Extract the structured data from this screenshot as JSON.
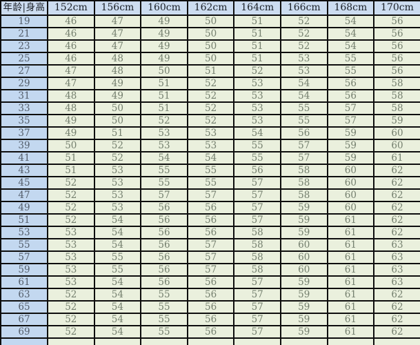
{
  "chart_data": {
    "type": "table",
    "title": "",
    "corner_header": "年龄|身高",
    "corner_header_meaning": "age | height",
    "column_headers": [
      "152cm",
      "156cm",
      "160cm",
      "162cm",
      "164cm",
      "166cm",
      "168cm",
      "170cm"
    ],
    "rows": [
      {
        "age": "19",
        "values": [
          46,
          47,
          49,
          50,
          51,
          52,
          54,
          56
        ]
      },
      {
        "age": "21",
        "values": [
          46,
          47,
          49,
          50,
          51,
          52,
          54,
          56
        ]
      },
      {
        "age": "23",
        "values": [
          46,
          47,
          49,
          50,
          51,
          52,
          54,
          56
        ]
      },
      {
        "age": "25",
        "values": [
          46,
          48,
          49,
          50,
          51,
          53,
          55,
          56
        ]
      },
      {
        "age": "27",
        "values": [
          47,
          48,
          50,
          51,
          52,
          53,
          55,
          56
        ]
      },
      {
        "age": "29",
        "values": [
          47,
          49,
          51,
          52,
          53,
          54,
          56,
          58
        ]
      },
      {
        "age": "31",
        "values": [
          48,
          49,
          51,
          52,
          53,
          54,
          56,
          58
        ]
      },
      {
        "age": "33",
        "values": [
          48,
          50,
          51,
          52,
          53,
          55,
          57,
          58
        ]
      },
      {
        "age": "35",
        "values": [
          49,
          50,
          52,
          52,
          53,
          55,
          57,
          59
        ]
      },
      {
        "age": "37",
        "values": [
          49,
          51,
          53,
          53,
          54,
          56,
          59,
          60
        ]
      },
      {
        "age": "39",
        "values": [
          50,
          52,
          53,
          53,
          55,
          57,
          59,
          60
        ]
      },
      {
        "age": "41",
        "values": [
          51,
          52,
          54,
          54,
          55,
          57,
          59,
          61
        ]
      },
      {
        "age": "43",
        "values": [
          51,
          53,
          55,
          55,
          56,
          58,
          60,
          62
        ]
      },
      {
        "age": "45",
        "values": [
          52,
          53,
          55,
          55,
          57,
          58,
          60,
          62
        ]
      },
      {
        "age": "47",
        "values": [
          52,
          53,
          57,
          57,
          57,
          58,
          60,
          62
        ]
      },
      {
        "age": "49",
        "values": [
          52,
          53,
          56,
          56,
          57,
          59,
          60,
          62
        ]
      },
      {
        "age": "51",
        "values": [
          52,
          54,
          56,
          56,
          57,
          59,
          61,
          62
        ]
      },
      {
        "age": "53",
        "values": [
          53,
          54,
          56,
          56,
          58,
          59,
          61,
          62
        ]
      },
      {
        "age": "55",
        "values": [
          53,
          54,
          56,
          57,
          58,
          60,
          61,
          63
        ]
      },
      {
        "age": "57",
        "values": [
          53,
          55,
          56,
          57,
          58,
          60,
          61,
          63
        ]
      },
      {
        "age": "59",
        "values": [
          53,
          55,
          56,
          57,
          58,
          60,
          61,
          63
        ]
      },
      {
        "age": "61",
        "values": [
          53,
          54,
          56,
          56,
          57,
          59,
          61,
          63
        ]
      },
      {
        "age": "63",
        "values": [
          52,
          54,
          55,
          56,
          57,
          59,
          61,
          62
        ]
      },
      {
        "age": "65",
        "values": [
          52,
          54,
          55,
          56,
          57,
          59,
          61,
          62
        ]
      },
      {
        "age": "67",
        "values": [
          52,
          54,
          55,
          56,
          57,
          59,
          61,
          62
        ]
      },
      {
        "age": "69",
        "values": [
          52,
          54,
          55,
          56,
          57,
          59,
          61,
          62
        ]
      }
    ]
  },
  "colors": {
    "header_bg": "#ccdcf0",
    "age_column_bg": "#c3d8f0",
    "data_cell_bg": "#eaf0dd",
    "border": "#0d0d0d",
    "header_text": "#1c2128",
    "age_text": "#545e6b",
    "data_text": "#747f6e"
  }
}
